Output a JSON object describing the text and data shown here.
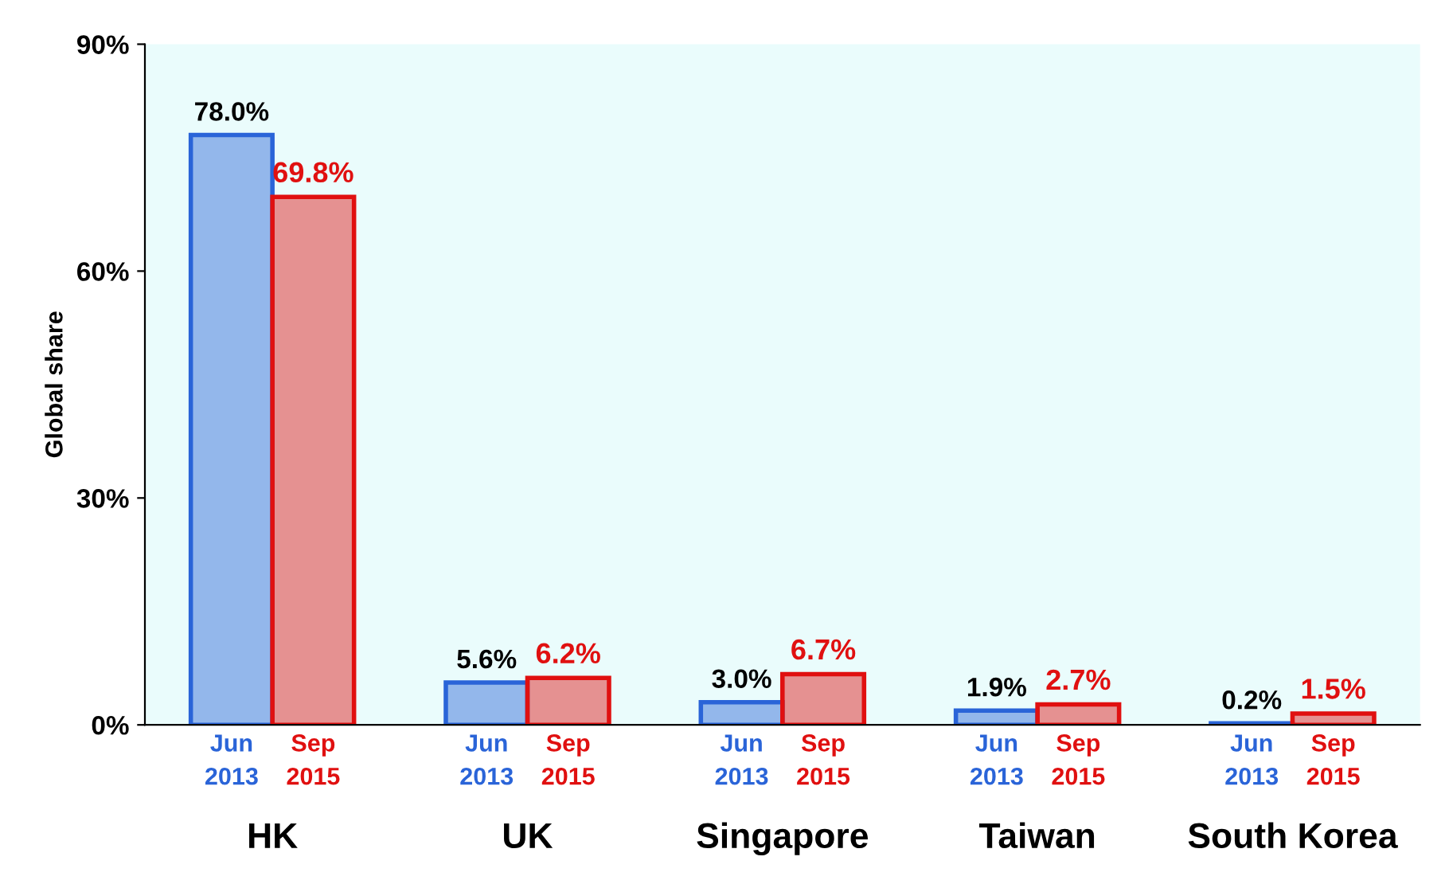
{
  "chart_data": {
    "type": "bar",
    "ylabel": "Global share",
    "categories": [
      "HK",
      "UK",
      "Singapore",
      "Taiwan",
      "South Korea"
    ],
    "series": [
      {
        "name": "Jun\n2013",
        "color": "#2a64d8",
        "values": [
          78.0,
          5.6,
          3.0,
          1.9,
          0.2
        ],
        "value_labels": [
          "78.0%",
          "5.6%",
          "3.0%",
          "1.9%",
          "0.2%"
        ]
      },
      {
        "name": "Sep\n2015",
        "color": "#e01010",
        "values": [
          69.8,
          6.2,
          6.7,
          2.7,
          1.5
        ],
        "value_labels": [
          "69.8%",
          "6.2%",
          "6.7%",
          "2.7%",
          "1.5%"
        ]
      }
    ],
    "ylim": [
      0,
      90
    ],
    "yticks": [
      {
        "value": 0,
        "label": "0%"
      },
      {
        "value": 30,
        "label": "30%"
      },
      {
        "value": 60,
        "label": "60%"
      },
      {
        "value": 90,
        "label": "90%"
      }
    ],
    "grid": false,
    "legend": false
  }
}
